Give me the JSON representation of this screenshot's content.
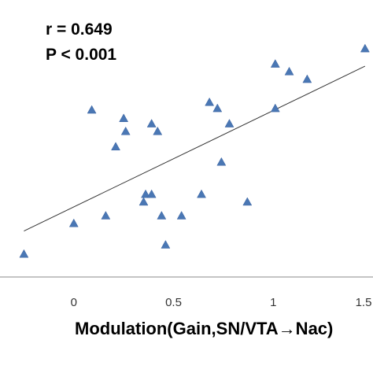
{
  "chart_data": {
    "type": "scatter",
    "annotations": {
      "r_text": "r = 0.649",
      "p_text": "P < 0.001"
    },
    "xlabel": "Modulation(Gain,SN/VTA→Nac)",
    "ylabel": "",
    "xlim": [
      -0.37,
      1.5
    ],
    "ylim": [
      0,
      310
    ],
    "xticks": [
      0,
      0.5,
      1,
      1.5
    ],
    "xtick_labels": [
      "0",
      "0.5",
      "1",
      "1.5"
    ],
    "marker": "triangle",
    "grid": false,
    "points": [
      {
        "x": -0.25,
        "y": 30
      },
      {
        "x": 0.0,
        "y": 70
      },
      {
        "x": 0.09,
        "y": 218
      },
      {
        "x": 0.16,
        "y": 80
      },
      {
        "x": 0.21,
        "y": 170
      },
      {
        "x": 0.25,
        "y": 207
      },
      {
        "x": 0.26,
        "y": 190
      },
      {
        "x": 0.35,
        "y": 98
      },
      {
        "x": 0.36,
        "y": 108
      },
      {
        "x": 0.39,
        "y": 108
      },
      {
        "x": 0.39,
        "y": 200
      },
      {
        "x": 0.42,
        "y": 190
      },
      {
        "x": 0.44,
        "y": 80
      },
      {
        "x": 0.46,
        "y": 42
      },
      {
        "x": 0.54,
        "y": 80
      },
      {
        "x": 0.64,
        "y": 108
      },
      {
        "x": 0.68,
        "y": 228
      },
      {
        "x": 0.72,
        "y": 220
      },
      {
        "x": 0.74,
        "y": 150
      },
      {
        "x": 0.78,
        "y": 200
      },
      {
        "x": 0.87,
        "y": 98
      },
      {
        "x": 1.01,
        "y": 278
      },
      {
        "x": 1.01,
        "y": 220
      },
      {
        "x": 1.08,
        "y": 268
      },
      {
        "x": 1.17,
        "y": 258
      },
      {
        "x": 1.46,
        "y": 298
      }
    ],
    "trendline": {
      "x1": -0.25,
      "y1": 60,
      "x2": 1.46,
      "y2": 275
    },
    "colors": {
      "marker": "#4a77b4",
      "line": "#333333",
      "axis": "#888888"
    }
  }
}
